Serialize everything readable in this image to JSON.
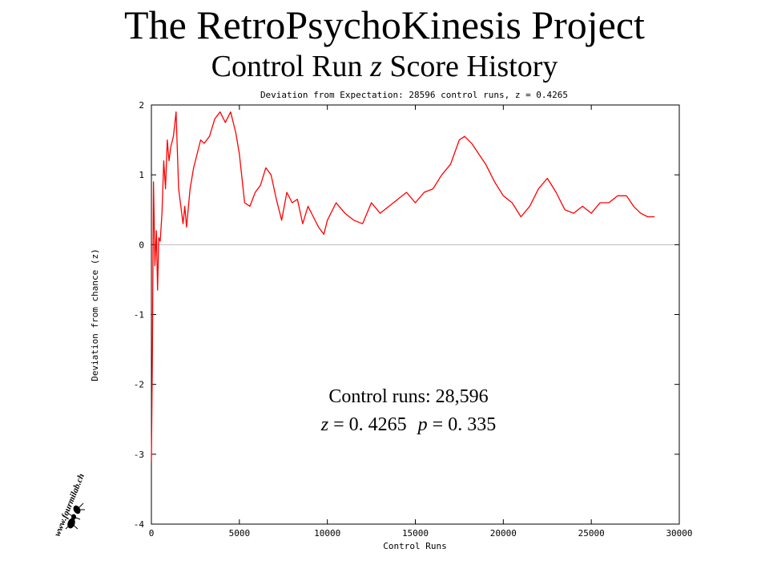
{
  "header": {
    "title": "The RetroPsychoKinesis Project",
    "subtitle_pre": "Control Run ",
    "subtitle_italic": "z",
    "subtitle_post": " Score History"
  },
  "chart_data": {
    "type": "line",
    "title": "Deviation from Expectation: 28596 control runs, z = 0.4265",
    "xlabel": "Control Runs",
    "ylabel": "Deviation from chance (z)",
    "xlim": [
      0,
      30000
    ],
    "ylim": [
      -4,
      2
    ],
    "x_ticks": [
      0,
      5000,
      10000,
      15000,
      20000,
      25000,
      30000
    ],
    "y_ticks": [
      -4,
      -3,
      -2,
      -1,
      0,
      1,
      2
    ],
    "reference_line": 0,
    "grid": false,
    "line_color": "#ff0000",
    "reference_color": "#bbbbbb",
    "series": [
      {
        "x": [
          0,
          60,
          120,
          200,
          280,
          350,
          420,
          500,
          600,
          700,
          800,
          900,
          1000,
          1100,
          1250,
          1400,
          1550,
          1700,
          1800,
          1900,
          2000,
          2200,
          2400,
          2600,
          2800,
          3000,
          3300,
          3600,
          3900,
          4200,
          4500,
          4800,
          5000,
          5300,
          5600,
          5900,
          6200,
          6500,
          6800,
          7100,
          7400,
          7700,
          8000,
          8300,
          8600,
          8900,
          9200,
          9500,
          9800,
          10000,
          10500,
          11000,
          11500,
          12000,
          12500,
          13000,
          13500,
          14000,
          14500,
          15000,
          15500,
          16000,
          16500,
          17000,
          17500,
          17800,
          18200,
          18600,
          19000,
          19500,
          20000,
          20500,
          21000,
          21500,
          22000,
          22500,
          23000,
          23500,
          24000,
          24500,
          25000,
          25500,
          26000,
          26500,
          27000,
          27400,
          27800,
          28200,
          28600
        ],
        "y": [
          -3.1,
          -1.5,
          0.9,
          -0.3,
          0.2,
          -0.65,
          0.1,
          0.05,
          0.45,
          1.2,
          0.8,
          1.5,
          1.2,
          1.4,
          1.55,
          1.9,
          0.8,
          0.5,
          0.3,
          0.55,
          0.25,
          0.8,
          1.1,
          1.3,
          1.5,
          1.45,
          1.55,
          1.8,
          1.9,
          1.75,
          1.9,
          1.6,
          1.3,
          0.6,
          0.55,
          0.75,
          0.85,
          1.1,
          1.0,
          0.65,
          0.35,
          0.75,
          0.6,
          0.65,
          0.3,
          0.55,
          0.4,
          0.25,
          0.15,
          0.35,
          0.6,
          0.45,
          0.35,
          0.3,
          0.6,
          0.45,
          0.55,
          0.65,
          0.75,
          0.6,
          0.75,
          0.8,
          1.0,
          1.15,
          1.5,
          1.55,
          1.45,
          1.3,
          1.15,
          0.9,
          0.7,
          0.6,
          0.4,
          0.55,
          0.8,
          0.95,
          0.75,
          0.5,
          0.45,
          0.55,
          0.45,
          0.6,
          0.6,
          0.7,
          0.7,
          0.55,
          0.45,
          0.4,
          0.4
        ]
      }
    ]
  },
  "annotation": {
    "line1": "Control runs: 28,596",
    "line2_z_label": "z",
    "line2_z_value": " = 0. 4265",
    "line2_p_label": "p",
    "line2_p_value": " = 0. 335"
  },
  "logo": {
    "text": "www.fourmilab.ch"
  }
}
